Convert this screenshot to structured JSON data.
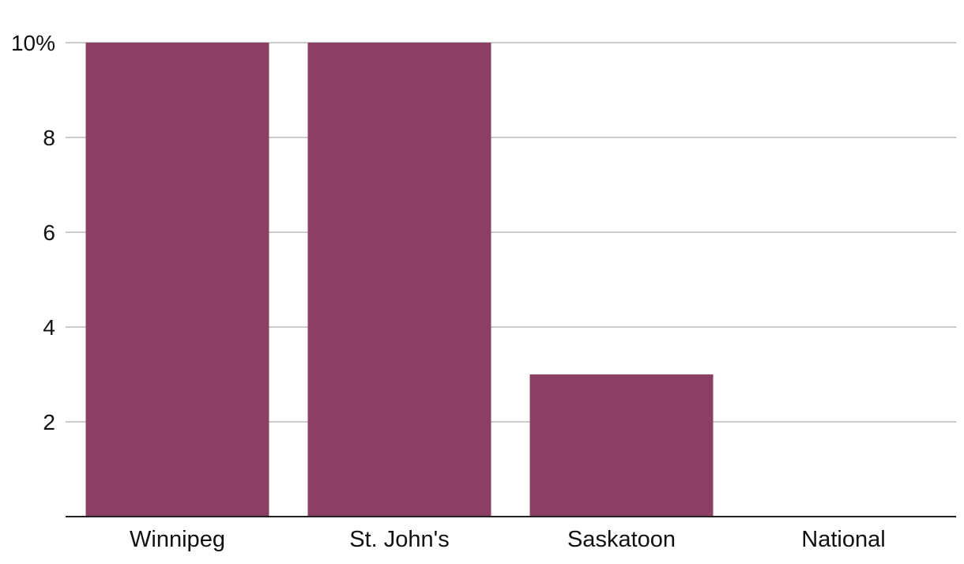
{
  "chart_data": {
    "type": "bar",
    "categories": [
      "Winnipeg",
      "St. John's",
      "Saskatoon",
      "National"
    ],
    "values": [
      10,
      10,
      3,
      0
    ],
    "ylim": [
      0,
      10
    ],
    "y_ticks": [
      {
        "value": 2,
        "label": "2"
      },
      {
        "value": 4,
        "label": "4"
      },
      {
        "value": 6,
        "label": "6"
      },
      {
        "value": 8,
        "label": "8"
      },
      {
        "value": 10,
        "label": "10%"
      }
    ],
    "grid": true,
    "bar_color": "#8b3f62",
    "grid_color": "#cccccc",
    "axis_color": "#222222",
    "text_color": "#111111",
    "title": "",
    "xlabel": "",
    "ylabel": ""
  }
}
